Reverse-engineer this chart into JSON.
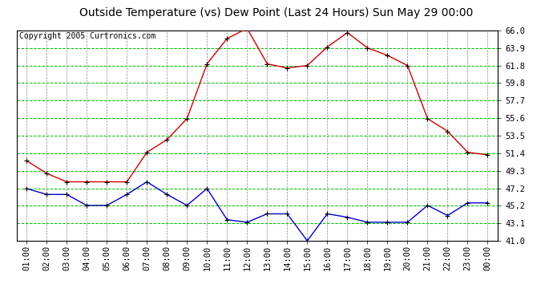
{
  "title": "Outside Temperature (vs) Dew Point (Last 24 Hours) Sun May 29 00:00",
  "copyright": "Copyright 2005 Curtronics.com",
  "x_labels": [
    "01:00",
    "02:00",
    "03:00",
    "04:00",
    "05:00",
    "06:00",
    "07:00",
    "08:00",
    "09:00",
    "10:00",
    "11:00",
    "12:00",
    "13:00",
    "14:00",
    "15:00",
    "16:00",
    "17:00",
    "18:00",
    "19:00",
    "20:00",
    "21:00",
    "22:00",
    "23:00",
    "00:00"
  ],
  "temp_values": [
    50.5,
    49.0,
    48.0,
    48.0,
    48.0,
    48.0,
    51.5,
    53.0,
    55.5,
    62.0,
    65.0,
    66.2,
    62.0,
    61.5,
    61.8,
    64.0,
    65.7,
    63.9,
    63.0,
    61.8,
    55.5,
    54.0,
    51.5,
    51.2
  ],
  "dew_values": [
    47.2,
    46.5,
    46.5,
    45.2,
    45.2,
    46.5,
    48.0,
    46.5,
    45.2,
    47.2,
    43.5,
    43.2,
    44.2,
    44.2,
    41.0,
    44.2,
    43.8,
    43.2,
    43.2,
    43.2,
    45.2,
    44.0,
    45.5,
    45.5
  ],
  "temp_color": "#cc0000",
  "dew_color": "#0000cc",
  "background_color": "#ffffff",
  "grid_h_color": "#00bb00",
  "grid_v_color": "#888888",
  "title_color": "#000000",
  "y_min": 41.0,
  "y_max": 66.0,
  "y_ticks": [
    41.0,
    43.1,
    45.2,
    47.2,
    49.3,
    51.4,
    53.5,
    55.6,
    57.7,
    59.8,
    61.8,
    63.9,
    66.0
  ],
  "title_fontsize": 10,
  "tick_fontsize": 7.5,
  "copyright_fontsize": 7
}
